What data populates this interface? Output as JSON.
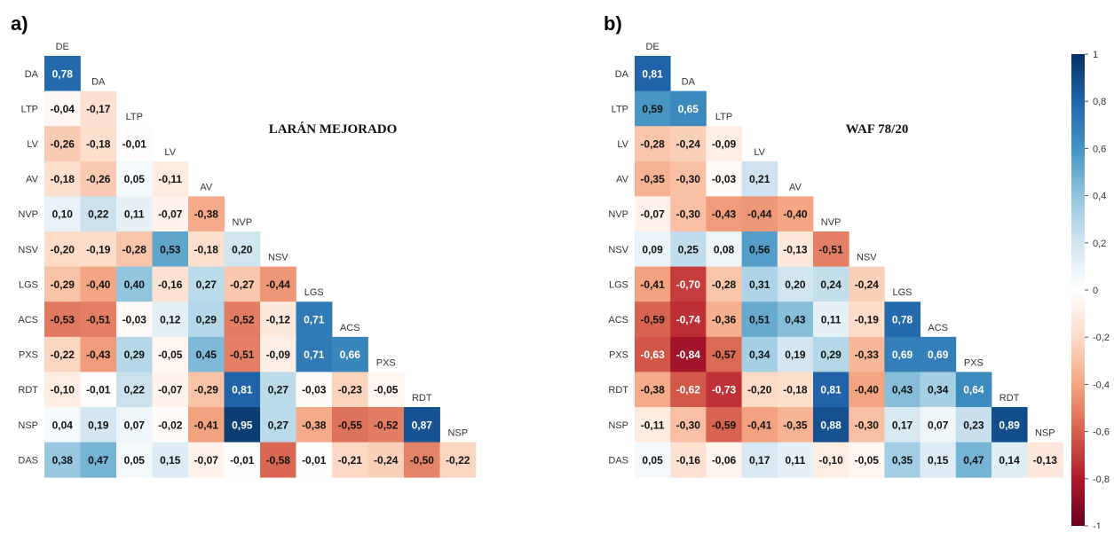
{
  "colorscale": {
    "min": -1,
    "max": 1,
    "ticks": [
      -1,
      -0.8,
      -0.6,
      -0.4,
      -0.2,
      0,
      0.2,
      0.4,
      0.6,
      0.8,
      1
    ],
    "tick_labels": [
      "-1",
      "-0,8",
      "-0,6",
      "-0,4",
      "-0,2",
      "0",
      "0,2",
      "0,4",
      "0,6",
      "0,8",
      "1"
    ],
    "neg_color": "#67001f",
    "mid_color": "#ffffff",
    "pos_color": "#053061"
  },
  "chart_data": [
    {
      "type": "heatmap",
      "panel_label": "a)",
      "title": "LARÁN MEJORADO",
      "column_labels": [
        "DE",
        "DA",
        "LTP",
        "LV",
        "AV",
        "NVP",
        "NSV",
        "LGS",
        "ACS",
        "PXS",
        "RDT",
        "NSP"
      ],
      "row_labels": [
        "DA",
        "LTP",
        "LV",
        "AV",
        "NVP",
        "NSV",
        "LGS",
        "ACS",
        "PXS",
        "RDT",
        "NSP",
        "DAS"
      ],
      "values": [
        [
          0.78
        ],
        [
          -0.04,
          -0.17
        ],
        [
          -0.26,
          -0.18,
          -0.01
        ],
        [
          -0.18,
          -0.26,
          0.05,
          -0.11
        ],
        [
          0.1,
          0.22,
          0.11,
          -0.07,
          -0.38
        ],
        [
          -0.2,
          -0.19,
          -0.28,
          0.53,
          -0.18,
          0.2
        ],
        [
          -0.29,
          -0.4,
          0.4,
          -0.16,
          0.27,
          -0.27,
          -0.44
        ],
        [
          -0.53,
          -0.51,
          -0.03,
          0.12,
          0.29,
          -0.52,
          -0.12,
          0.71
        ],
        [
          -0.22,
          -0.43,
          0.29,
          -0.05,
          0.45,
          -0.51,
          -0.09,
          0.71,
          0.66
        ],
        [
          -0.1,
          -0.01,
          0.22,
          -0.07,
          -0.29,
          0.81,
          0.27,
          -0.03,
          -0.23,
          -0.05
        ],
        [
          0.04,
          0.19,
          0.07,
          -0.02,
          -0.41,
          0.95,
          0.27,
          -0.38,
          -0.55,
          -0.52,
          0.87
        ],
        [
          0.38,
          0.47,
          0.05,
          0.15,
          -0.07,
          -0.01,
          -0.58,
          -0.01,
          -0.21,
          -0.24,
          -0.5,
          -0.22
        ]
      ],
      "value_labels": [
        [
          "0,78"
        ],
        [
          "-0,04",
          "-0,17"
        ],
        [
          "-0,26",
          "-0,18",
          "-0,01"
        ],
        [
          "-0,18",
          "-0,26",
          "0,05",
          "-0,11"
        ],
        [
          "0,10",
          "0,22",
          "0,11",
          "-0,07",
          "-0,38"
        ],
        [
          "-0,20",
          "-0,19",
          "-0,28",
          "0,53",
          "-0,18",
          "0,20"
        ],
        [
          "-0,29",
          "-0,40",
          "0,40",
          "-0,16",
          "0,27",
          "-0,27",
          "-0,44"
        ],
        [
          "-0,53",
          "-0,51",
          "-0,03",
          "0,12",
          "0,29",
          "-0,52",
          "-0,12",
          "0,71"
        ],
        [
          "-0,22",
          "-0,43",
          "0,29",
          "-0,05",
          "0,45",
          "-0,51",
          "-0,09",
          "0,71",
          "0,66"
        ],
        [
          "-0,10",
          "-0,01",
          "0,22",
          "-0,07",
          "-0,29",
          "0,81",
          "0,27",
          "-0,03",
          "-0,23",
          "-0,05"
        ],
        [
          "0,04",
          "0,19",
          "0,07",
          "-0,02",
          "-0,41",
          "0,95",
          "0,27",
          "-0,38",
          "-0,55",
          "-0,52",
          "0,87"
        ],
        [
          "0,38",
          "0,47",
          "0,05",
          "0,15",
          "-0,07",
          "-0,01",
          "-0,58",
          "-0,01",
          "-0,21",
          "-0,24",
          "-0,50",
          "-0,22"
        ]
      ]
    },
    {
      "type": "heatmap",
      "panel_label": "b)",
      "title": "WAF 78/20",
      "column_labels": [
        "DE",
        "DA",
        "LTP",
        "LV",
        "AV",
        "NVP",
        "NSV",
        "LGS",
        "ACS",
        "PXS",
        "RDT",
        "NSP"
      ],
      "row_labels": [
        "DA",
        "LTP",
        "LV",
        "AV",
        "NVP",
        "NSV",
        "LGS",
        "ACS",
        "PXS",
        "RDT",
        "NSP",
        "DAS"
      ],
      "values": [
        [
          0.81
        ],
        [
          0.59,
          0.65
        ],
        [
          -0.28,
          -0.24,
          -0.09
        ],
        [
          -0.35,
          -0.3,
          -0.03,
          0.21
        ],
        [
          -0.07,
          -0.3,
          -0.43,
          -0.44,
          -0.4
        ],
        [
          0.09,
          0.25,
          0.08,
          0.56,
          -0.13,
          -0.51
        ],
        [
          -0.41,
          -0.7,
          -0.28,
          0.31,
          0.2,
          0.24,
          -0.24
        ],
        [
          -0.59,
          -0.74,
          -0.36,
          0.51,
          0.43,
          0.11,
          -0.19,
          0.78
        ],
        [
          -0.63,
          -0.84,
          -0.57,
          0.34,
          0.19,
          0.29,
          -0.33,
          0.69,
          0.69
        ],
        [
          -0.38,
          -0.62,
          -0.73,
          -0.2,
          -0.18,
          0.81,
          -0.4,
          0.43,
          0.34,
          0.64
        ],
        [
          -0.11,
          -0.3,
          -0.59,
          -0.41,
          -0.35,
          0.88,
          -0.3,
          0.17,
          0.07,
          0.23,
          0.89
        ],
        [
          0.05,
          -0.16,
          -0.06,
          0.17,
          0.11,
          -0.1,
          -0.05,
          0.35,
          0.15,
          0.47,
          0.14,
          -0.13
        ]
      ],
      "value_labels": [
        [
          "0,81"
        ],
        [
          "0,59",
          "0,65"
        ],
        [
          "-0,28",
          "-0,24",
          "-0,09"
        ],
        [
          "-0,35",
          "-0,30",
          "-0,03",
          "0,21"
        ],
        [
          "-0,07",
          "-0,30",
          "-0,43",
          "-0,44",
          "-0,40"
        ],
        [
          "0,09",
          "0,25",
          "0,08",
          "0,56",
          "-0,13",
          "-0,51"
        ],
        [
          "-0,41",
          "-0,70",
          "-0,28",
          "0,31",
          "0,20",
          "0,24",
          "-0,24"
        ],
        [
          "-0,59",
          "-0,74",
          "-0,36",
          "0,51",
          "0,43",
          "0,11",
          "-0,19",
          "0,78"
        ],
        [
          "-0,63",
          "-0,84",
          "-0,57",
          "0,34",
          "0,19",
          "0,29",
          "-0,33",
          "0,69",
          "0,69"
        ],
        [
          "-0,38",
          "-0,62",
          "-0,73",
          "-0,20",
          "-0,18",
          "0,81",
          "-0,40",
          "0,43",
          "0,34",
          "0,64"
        ],
        [
          "-0,11",
          "-0,30",
          "-0,59",
          "-0,41",
          "-0,35",
          "0,88",
          "-0,30",
          "0,17",
          "0,07",
          "0,23",
          "0,89"
        ],
        [
          "0,05",
          "-0,16",
          "-0,06",
          "0,17",
          "0,11",
          "-0,10",
          "-0,05",
          "0,35",
          "0,15",
          "0,47",
          "0,14",
          "-0,13"
        ]
      ]
    }
  ]
}
